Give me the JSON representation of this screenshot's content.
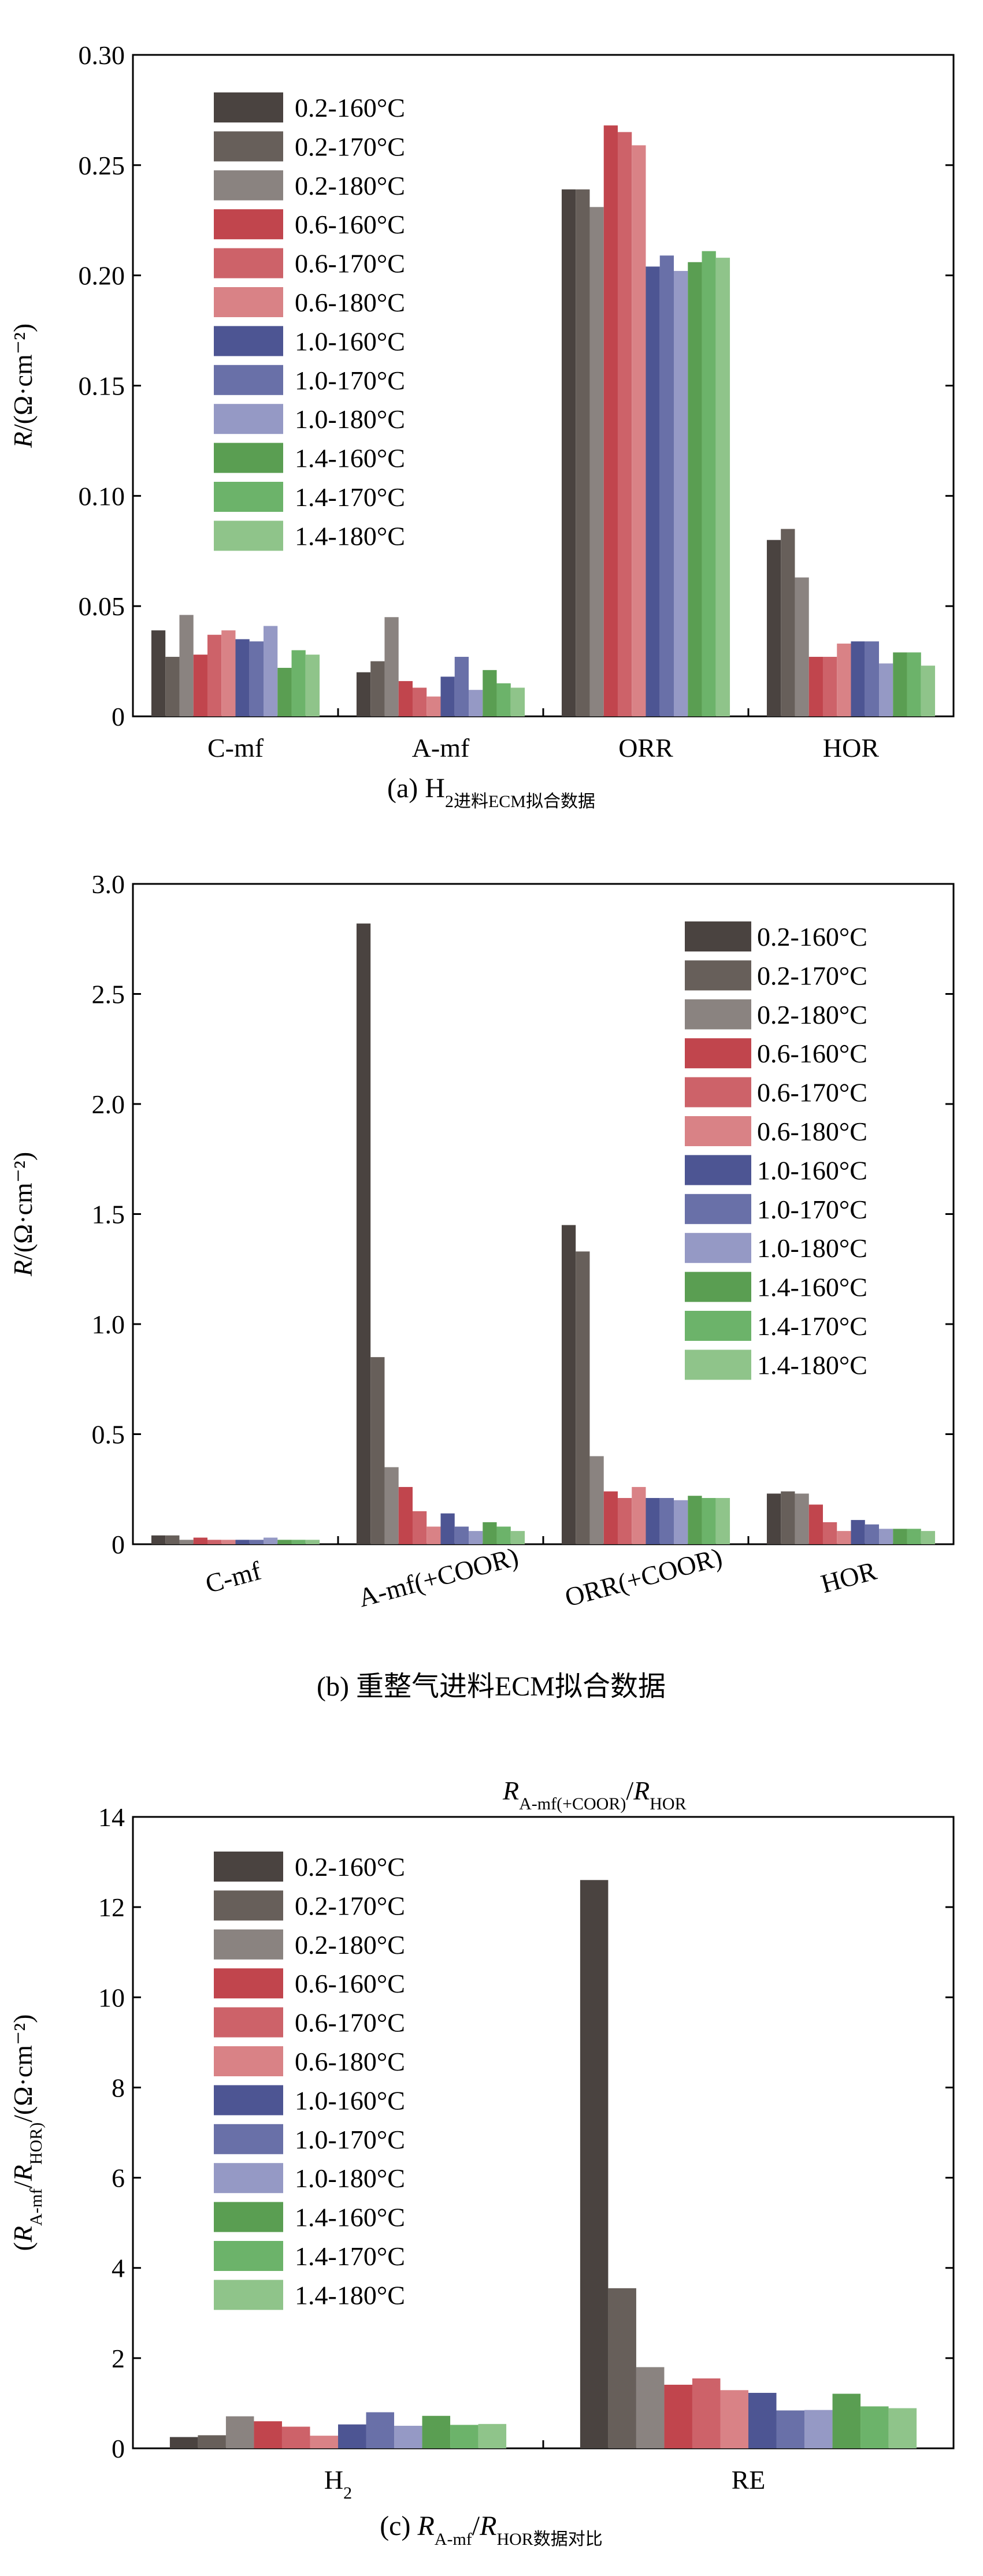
{
  "chart_data": [
    {
      "type": "bar",
      "categories": [
        "C-mf",
        "A-mf",
        "ORR",
        "HOR"
      ],
      "ylabel": "R/(Ω·cm⁻²)",
      "ylim": [
        0,
        0.3
      ],
      "yticks": [
        "0",
        "0.05",
        "0.10",
        "0.15",
        "0.20",
        "0.25",
        "0.30"
      ],
      "caption": "(a) H₂进料ECM拟合数据",
      "legend_position": "top-left",
      "series": [
        {
          "name": "0.2-160°C",
          "values": [
            0.039,
            0.02,
            0.239,
            0.08
          ]
        },
        {
          "name": "0.2-170°C",
          "values": [
            0.027,
            0.025,
            0.239,
            0.085
          ]
        },
        {
          "name": "0.2-180°C",
          "values": [
            0.046,
            0.045,
            0.231,
            0.063
          ]
        },
        {
          "name": "0.6-160°C",
          "values": [
            0.028,
            0.016,
            0.268,
            0.027
          ]
        },
        {
          "name": "0.6-170°C",
          "values": [
            0.037,
            0.013,
            0.265,
            0.027
          ]
        },
        {
          "name": "0.6-180°C",
          "values": [
            0.039,
            0.009,
            0.259,
            0.033
          ]
        },
        {
          "name": "1.0-160°C",
          "values": [
            0.035,
            0.018,
            0.204,
            0.034
          ]
        },
        {
          "name": "1.0-170°C",
          "values": [
            0.034,
            0.027,
            0.209,
            0.034
          ]
        },
        {
          "name": "1.0-180°C",
          "values": [
            0.041,
            0.012,
            0.202,
            0.024
          ]
        },
        {
          "name": "1.4-160°C",
          "values": [
            0.022,
            0.021,
            0.206,
            0.029
          ]
        },
        {
          "name": "1.4-170°C",
          "values": [
            0.03,
            0.015,
            0.211,
            0.029
          ]
        },
        {
          "name": "1.4-180°C",
          "values": [
            0.028,
            0.013,
            0.208,
            0.023
          ]
        }
      ]
    },
    {
      "type": "bar",
      "categories": [
        "C-mf",
        "A-mf(+COOR)",
        "ORR(+COOR)",
        "HOR"
      ],
      "ylabel": "R/(Ω·cm⁻²)",
      "ylim": [
        0,
        3.0
      ],
      "yticks": [
        "0",
        "0.5",
        "1.0",
        "1.5",
        "2.0",
        "2.5",
        "3.0"
      ],
      "caption": "(b) 重整气进料ECM拟合数据",
      "legend_position": "top-right",
      "series": [
        {
          "name": "0.2-160°C",
          "values": [
            0.04,
            2.82,
            1.45,
            0.23
          ]
        },
        {
          "name": "0.2-170°C",
          "values": [
            0.04,
            0.85,
            1.33,
            0.24
          ]
        },
        {
          "name": "0.2-180°C",
          "values": [
            0.02,
            0.35,
            0.4,
            0.23
          ]
        },
        {
          "name": "0.6-160°C",
          "values": [
            0.03,
            0.26,
            0.24,
            0.18
          ]
        },
        {
          "name": "0.6-170°C",
          "values": [
            0.02,
            0.15,
            0.21,
            0.1
          ]
        },
        {
          "name": "0.6-180°C",
          "values": [
            0.02,
            0.08,
            0.26,
            0.06
          ]
        },
        {
          "name": "1.0-160°C",
          "values": [
            0.02,
            0.14,
            0.21,
            0.11
          ]
        },
        {
          "name": "1.0-170°C",
          "values": [
            0.02,
            0.08,
            0.21,
            0.09
          ]
        },
        {
          "name": "1.0-180°C",
          "values": [
            0.03,
            0.06,
            0.2,
            0.07
          ]
        },
        {
          "name": "1.4-160°C",
          "values": [
            0.02,
            0.1,
            0.22,
            0.07
          ]
        },
        {
          "name": "1.4-170°C",
          "values": [
            0.02,
            0.08,
            0.21,
            0.07
          ]
        },
        {
          "name": "1.4-180°C",
          "values": [
            0.02,
            0.06,
            0.21,
            0.06
          ]
        }
      ]
    },
    {
      "type": "bar",
      "categories": [
        "H₂",
        "RE"
      ],
      "ylabel": "(R_A-mf/R_HOR)/(Ω·cm⁻²)",
      "ylim": [
        0,
        14
      ],
      "yticks": [
        "0",
        "2",
        "4",
        "6",
        "8",
        "10",
        "12",
        "14"
      ],
      "caption": "(c) R_A-mf/R_HOR数据对比",
      "annotation": "R_A-mf(+COOR)/R_HOR",
      "legend_position": "top-left",
      "series": [
        {
          "name": "0.2-160°C",
          "values": [
            0.25,
            12.6
          ]
        },
        {
          "name": "0.2-170°C",
          "values": [
            0.29,
            3.55
          ]
        },
        {
          "name": "0.2-180°C",
          "values": [
            0.71,
            1.8
          ]
        },
        {
          "name": "0.6-160°C",
          "values": [
            0.6,
            1.41
          ]
        },
        {
          "name": "0.6-170°C",
          "values": [
            0.48,
            1.55
          ]
        },
        {
          "name": "0.6-180°C",
          "values": [
            0.28,
            1.29
          ]
        },
        {
          "name": "1.0-160°C",
          "values": [
            0.53,
            1.23
          ]
        },
        {
          "name": "1.0-170°C",
          "values": [
            0.8,
            0.84
          ]
        },
        {
          "name": "1.0-180°C",
          "values": [
            0.5,
            0.85
          ]
        },
        {
          "name": "1.4-160°C",
          "values": [
            0.72,
            1.21
          ]
        },
        {
          "name": "1.4-170°C",
          "values": [
            0.52,
            0.93
          ]
        },
        {
          "name": "1.4-180°C",
          "values": [
            0.54,
            0.89
          ]
        }
      ]
    }
  ],
  "colors": [
    "#4a4340",
    "#675f5a",
    "#8a8380",
    "#c1454d",
    "#cd6269",
    "#d98286",
    "#4d5593",
    "#6970a8",
    "#9599c5",
    "#5a9e52",
    "#6cb36a",
    "#8fc48a"
  ]
}
